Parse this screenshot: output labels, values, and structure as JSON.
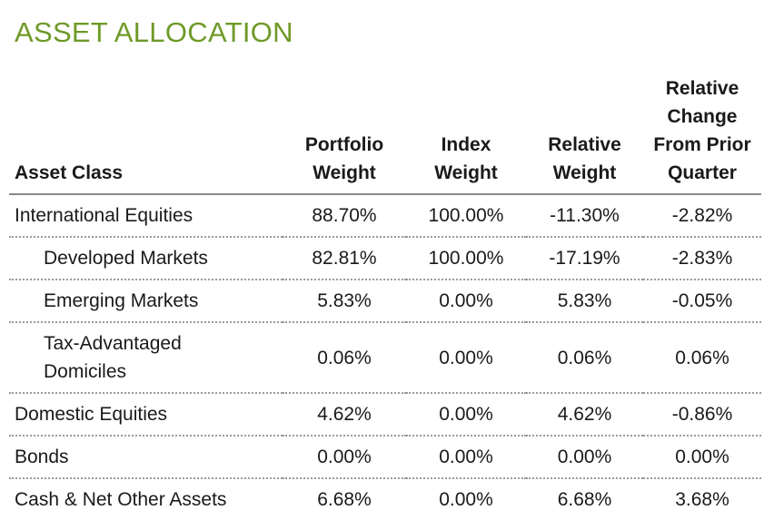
{
  "title": "ASSET ALLOCATION",
  "colors": {
    "title": "#6e9a28",
    "header_rule": "#8a8a8a",
    "row_divider": "#9a9a9a"
  },
  "headers": {
    "asset_class": "Asset Class",
    "portfolio_weight": [
      "Portfolio",
      "Weight"
    ],
    "index_weight": [
      "Index",
      "Weight"
    ],
    "relative_weight": [
      "Relative",
      "Weight"
    ],
    "relative_change": [
      "Relative",
      "Change",
      "From Prior",
      "Quarter"
    ]
  },
  "rows": [
    {
      "name": [
        "International Equities"
      ],
      "indent": false,
      "portfolio_weight": "88.70%",
      "index_weight": "100.00%",
      "relative_weight": "-11.30%",
      "relative_change": "-2.82%"
    },
    {
      "name": [
        "Developed Markets"
      ],
      "indent": true,
      "portfolio_weight": "82.81%",
      "index_weight": "100.00%",
      "relative_weight": "-17.19%",
      "relative_change": "-2.83%"
    },
    {
      "name": [
        "Emerging Markets"
      ],
      "indent": true,
      "portfolio_weight": "5.83%",
      "index_weight": "0.00%",
      "relative_weight": "5.83%",
      "relative_change": "-0.05%"
    },
    {
      "name": [
        "Tax-Advantaged",
        "Domiciles"
      ],
      "indent": true,
      "portfolio_weight": "0.06%",
      "index_weight": "0.00%",
      "relative_weight": "0.06%",
      "relative_change": "0.06%"
    },
    {
      "name": [
        "Domestic Equities"
      ],
      "indent": false,
      "portfolio_weight": "4.62%",
      "index_weight": "0.00%",
      "relative_weight": "4.62%",
      "relative_change": "-0.86%"
    },
    {
      "name": [
        "Bonds"
      ],
      "indent": false,
      "portfolio_weight": "0.00%",
      "index_weight": "0.00%",
      "relative_weight": "0.00%",
      "relative_change": "0.00%"
    },
    {
      "name": [
        "Cash & Net Other Assets"
      ],
      "indent": false,
      "portfolio_weight": "6.68%",
      "index_weight": "0.00%",
      "relative_weight": "6.68%",
      "relative_change": "3.68%"
    }
  ]
}
